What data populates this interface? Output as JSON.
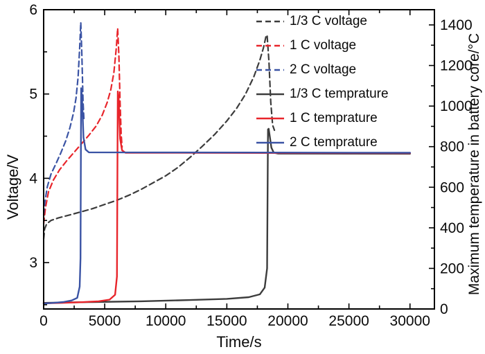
{
  "figure": {
    "background": "#ffffff"
  },
  "chart_data": {
    "type": "line",
    "title": "",
    "xlabel": "Time/s",
    "ylabel_left": "Voltage/V",
    "ylabel_right": "Maximum temperature in battery core/°C",
    "legend_position": "top-right",
    "grid": false,
    "x_axis": {
      "min": 0,
      "max": 32000,
      "minor_step": 2500,
      "tick_values": [
        0,
        5000,
        10000,
        15000,
        20000,
        25000,
        30000
      ],
      "tick_labels": [
        "0",
        "5000",
        "10000",
        "15000",
        "20000",
        "25000",
        "30000"
      ]
    },
    "y_left": {
      "min": 2.45,
      "max": 6.0,
      "minor_step": 0.5,
      "tick_values": [
        3,
        4,
        5,
        6
      ],
      "tick_labels": [
        "3",
        "4",
        "5",
        "6"
      ]
    },
    "y_right": {
      "min": 0,
      "max": 1475,
      "minor_step": 100,
      "tick_values": [
        0,
        200,
        400,
        600,
        800,
        1000,
        1200,
        1400
      ],
      "tick_labels": [
        "0",
        "200",
        "400",
        "600",
        "800",
        "1000",
        "1200",
        "1400"
      ]
    },
    "colors": {
      "black": "#3c3c3c",
      "red": "#e8252b",
      "blue": "#3a53a4"
    },
    "legend": [
      {
        "label": "1/3 C voltage",
        "color": "#3c3c3c",
        "dash": true
      },
      {
        "label": "1 C voltage",
        "color": "#e8252b",
        "dash": true
      },
      {
        "label": "2 C voltage",
        "color": "#3a53a4",
        "dash": true
      },
      {
        "label": "1/3 C temprature",
        "color": "#3c3c3c",
        "dash": false
      },
      {
        "label": "1 C temprature",
        "color": "#e8252b",
        "dash": false
      },
      {
        "label": "2 C temprature",
        "color": "#3a53a4",
        "dash": false
      }
    ],
    "series": [
      {
        "id": "one-third-c-voltage",
        "name": "1/3 C voltage",
        "axis": "left",
        "unit": "V",
        "color": "#3c3c3c",
        "dash": true,
        "width": 2.2,
        "points": [
          [
            0,
            3.28
          ],
          [
            80,
            3.4
          ],
          [
            250,
            3.46
          ],
          [
            600,
            3.5
          ],
          [
            1200,
            3.53
          ],
          [
            2500,
            3.58
          ],
          [
            4000,
            3.64
          ],
          [
            5000,
            3.69
          ],
          [
            6000,
            3.74
          ],
          [
            7000,
            3.8
          ],
          [
            8000,
            3.87
          ],
          [
            9000,
            3.95
          ],
          [
            10000,
            4.03
          ],
          [
            11000,
            4.13
          ],
          [
            12000,
            4.25
          ],
          [
            13000,
            4.38
          ],
          [
            14000,
            4.52
          ],
          [
            15000,
            4.68
          ],
          [
            15800,
            4.83
          ],
          [
            16500,
            4.99
          ],
          [
            17200,
            5.2
          ],
          [
            17700,
            5.4
          ],
          [
            18000,
            5.55
          ],
          [
            18200,
            5.68
          ],
          [
            18300,
            5.7
          ],
          [
            18450,
            5.38
          ],
          [
            18600,
            4.9
          ],
          [
            18750,
            4.63
          ],
          [
            18900,
            4.57
          ]
        ]
      },
      {
        "id": "one-c-voltage",
        "name": "1 C voltage",
        "axis": "left",
        "unit": "V",
        "color": "#e8252b",
        "dash": true,
        "width": 2.2,
        "points": [
          [
            0,
            3.46
          ],
          [
            150,
            3.65
          ],
          [
            400,
            3.84
          ],
          [
            800,
            3.98
          ],
          [
            1300,
            4.1
          ],
          [
            1900,
            4.21
          ],
          [
            2500,
            4.31
          ],
          [
            3100,
            4.41
          ],
          [
            3700,
            4.51
          ],
          [
            4300,
            4.62
          ],
          [
            4800,
            4.75
          ],
          [
            5200,
            4.9
          ],
          [
            5500,
            5.05
          ],
          [
            5750,
            5.25
          ],
          [
            5950,
            5.55
          ],
          [
            6060,
            5.78
          ],
          [
            6160,
            5.45
          ],
          [
            6260,
            4.9
          ],
          [
            6350,
            4.52
          ],
          [
            6420,
            4.37
          ]
        ]
      },
      {
        "id": "two-c-voltage",
        "name": "2 C voltage",
        "axis": "left",
        "unit": "V",
        "color": "#3a53a4",
        "dash": true,
        "width": 2.2,
        "points": [
          [
            0,
            3.57
          ],
          [
            100,
            3.72
          ],
          [
            300,
            3.9
          ],
          [
            600,
            4.05
          ],
          [
            1000,
            4.17
          ],
          [
            1400,
            4.3
          ],
          [
            1800,
            4.44
          ],
          [
            2150,
            4.6
          ],
          [
            2450,
            4.78
          ],
          [
            2650,
            4.95
          ],
          [
            2820,
            5.2
          ],
          [
            2950,
            5.55
          ],
          [
            3040,
            5.85
          ],
          [
            3130,
            5.45
          ],
          [
            3230,
            4.9
          ],
          [
            3310,
            4.67
          ]
        ]
      },
      {
        "id": "one-third-c-temperature",
        "name": "1/3 C temprature",
        "axis": "right",
        "unit": "°C",
        "color": "#3c3c3c",
        "dash": false,
        "width": 2.4,
        "points": [
          [
            0,
            30
          ],
          [
            4000,
            34
          ],
          [
            8000,
            38
          ],
          [
            12000,
            44
          ],
          [
            15000,
            50
          ],
          [
            16800,
            58
          ],
          [
            17700,
            72
          ],
          [
            18100,
            105
          ],
          [
            18300,
            200
          ],
          [
            18370,
            885
          ],
          [
            18430,
            888
          ],
          [
            18520,
            850
          ],
          [
            18650,
            795
          ],
          [
            18850,
            770
          ],
          [
            19200,
            766
          ],
          [
            30000,
            765
          ]
        ]
      },
      {
        "id": "one-c-temperature",
        "name": "1 C temprature",
        "axis": "right",
        "unit": "°C",
        "color": "#e8252b",
        "dash": false,
        "width": 2.4,
        "points": [
          [
            0,
            28
          ],
          [
            1500,
            30
          ],
          [
            3000,
            33
          ],
          [
            4500,
            38
          ],
          [
            5400,
            46
          ],
          [
            5850,
            70
          ],
          [
            6000,
            160
          ],
          [
            6070,
            1072
          ],
          [
            6140,
            1045
          ],
          [
            6260,
            840
          ],
          [
            6420,
            782
          ],
          [
            6700,
            770
          ],
          [
            30000,
            768
          ]
        ]
      },
      {
        "id": "two-c-temperature",
        "name": "2 C temprature",
        "axis": "right",
        "unit": "°C",
        "color": "#3a53a4",
        "dash": false,
        "width": 2.4,
        "points": [
          [
            0,
            27
          ],
          [
            800,
            30
          ],
          [
            1600,
            34
          ],
          [
            2300,
            42
          ],
          [
            2750,
            55
          ],
          [
            2950,
            110
          ],
          [
            3020,
            250
          ],
          [
            3070,
            1088
          ],
          [
            3140,
            1048
          ],
          [
            3260,
            845
          ],
          [
            3430,
            786
          ],
          [
            3700,
            772
          ],
          [
            30000,
            770
          ]
        ]
      }
    ]
  }
}
